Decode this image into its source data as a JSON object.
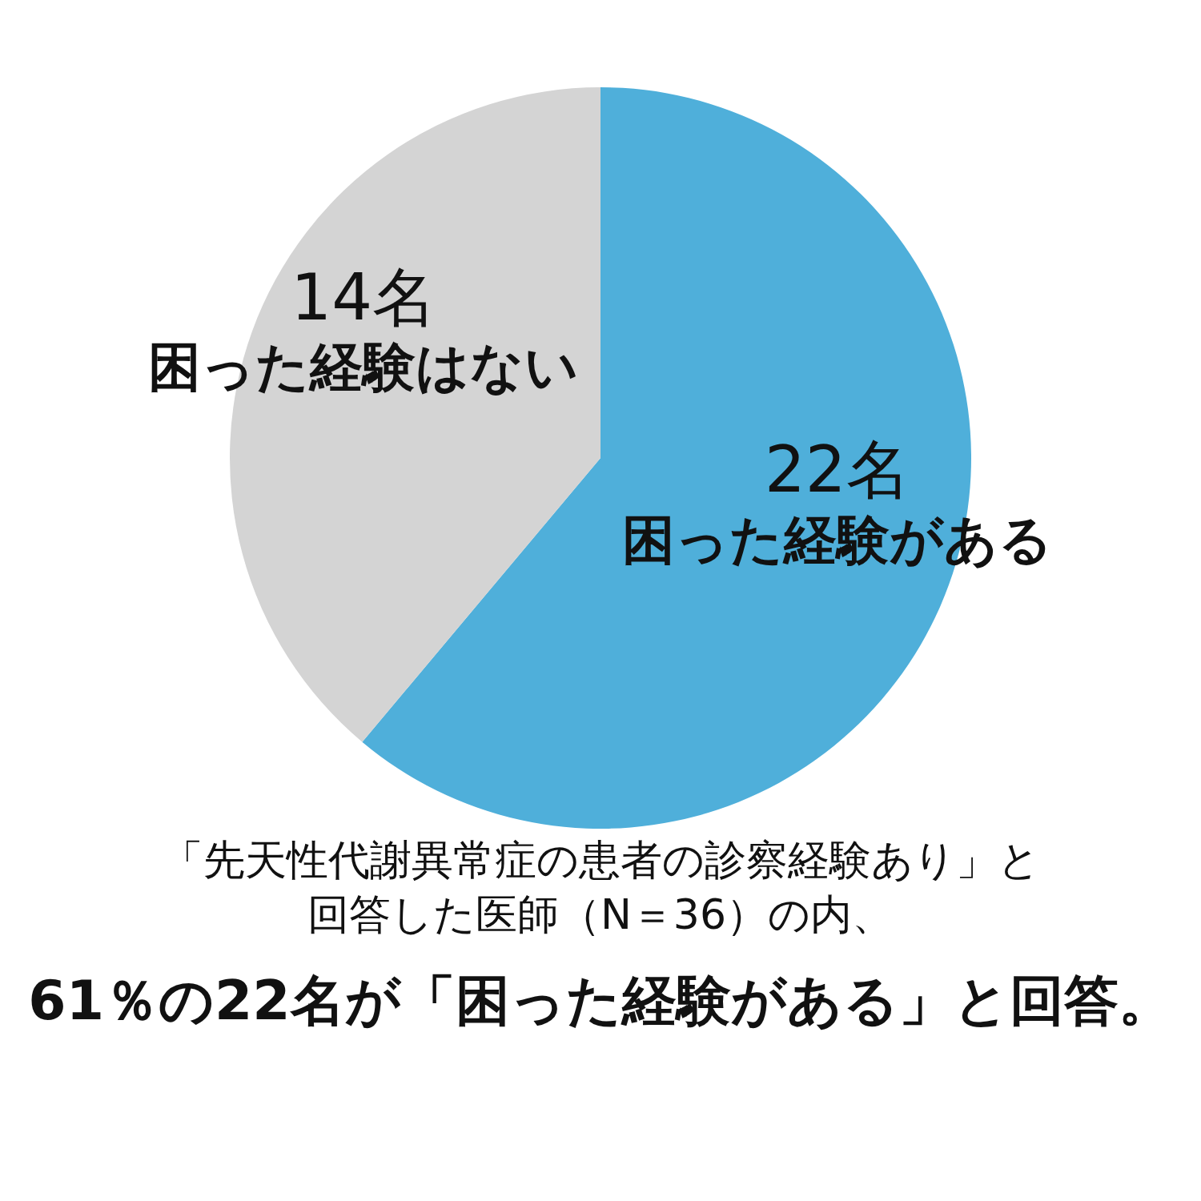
{
  "chart_data": {
    "type": "pie",
    "categories": [
      "困った経験がある",
      "困った経験はない"
    ],
    "values": [
      22,
      14
    ],
    "colors": [
      "#4fafda",
      "#d4d4d4"
    ],
    "value_labels": [
      "22名",
      "14名"
    ],
    "legend": false,
    "annotations": [
      "「先天性代謝異常症の患者の診察経験あり」と",
      "回答した医師（N＝36）の内、",
      "61％の22名が「困った経験がある」と回答。"
    ]
  }
}
